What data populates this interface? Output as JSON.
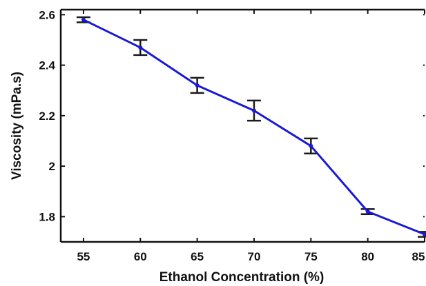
{
  "chart_data": {
    "type": "line",
    "title": "",
    "xlabel": "Ethanol Concentration (%)",
    "ylabel": "Viscosity (mPa.s)",
    "xlim": [
      53,
      85
    ],
    "ylim": [
      1.7,
      2.62
    ],
    "x_ticks": [
      55,
      60,
      65,
      70,
      75,
      80,
      85
    ],
    "x_tick_labels": [
      "55",
      "60",
      "65",
      "70",
      "75",
      "80",
      "85"
    ],
    "y_ticks": [
      1.8,
      2.0,
      2.2,
      2.4,
      2.6
    ],
    "y_tick_labels": [
      "1.8",
      "2",
      "2.2",
      "2.4",
      "2.6"
    ],
    "grid": false,
    "series": [
      {
        "x": [
          55,
          60,
          65,
          70,
          75,
          80,
          85
        ],
        "y": [
          2.58,
          2.47,
          2.32,
          2.22,
          2.08,
          1.82,
          1.73
        ],
        "error": [
          0.01,
          0.03,
          0.03,
          0.04,
          0.03,
          0.01,
          0.01
        ],
        "color": "#1a1ad0"
      }
    ],
    "colors": {
      "line": "#1a1ad0",
      "error_bar": "#1a1a1a",
      "axis": "#111111"
    }
  }
}
